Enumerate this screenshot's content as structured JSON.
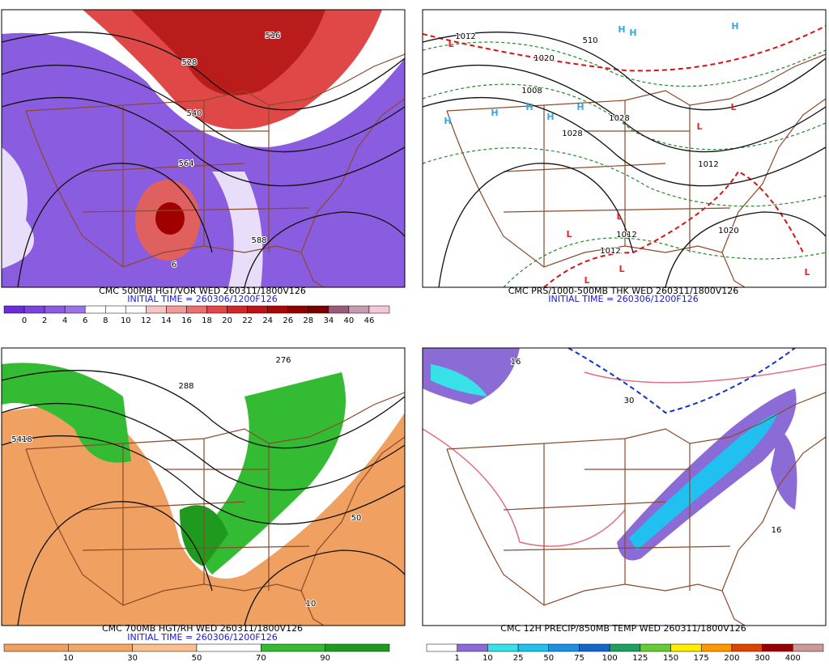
{
  "panels": [
    {
      "caption": "CMC 500MB HGT/VOR WED 260311/1800V126",
      "initial_time": "INITIAL TIME = 260306/1200F126",
      "colorbar": {
        "labels": [
          0,
          2,
          4,
          6,
          8,
          10,
          12,
          14,
          16,
          18,
          20,
          22,
          24,
          26,
          28,
          34,
          40,
          46
        ],
        "colors": [
          "#6a2bd8",
          "#7a44dc",
          "#8a5ce0",
          "#9a74e4",
          "#ffffff",
          "#ffffff",
          "#ffffff",
          "#f6c4c4",
          "#f09a9a",
          "#e87070",
          "#e04848",
          "#d02828",
          "#bc1414",
          "#a80808",
          "#900000",
          "#780000",
          "#9a5a78",
          "#c89ab0",
          "#f2c8d8"
        ]
      },
      "labels": [
        "516",
        "528",
        "540",
        "564",
        "588",
        "6"
      ]
    },
    {
      "caption": "CMC PRS/1000-500MB THK WED 260311/1800V126",
      "initial_time": "INITIAL TIME = 260306/1200F126",
      "labels": [
        "1012",
        "1020",
        "1008",
        "510",
        "1028",
        "1028",
        "1012",
        "1020",
        "1012",
        "1012"
      ],
      "highs": [
        "H",
        "H",
        "H",
        "H",
        "H",
        "H",
        "H",
        "H"
      ],
      "lows": [
        "L",
        "L",
        "L",
        "L",
        "L",
        "L",
        "L",
        "L"
      ]
    },
    {
      "caption": "CMC 700MB HGT/RH WED 260311/1800V126",
      "initial_time": "INITIAL TIME = 260306/1200F126",
      "colorbar": {
        "labels": [
          10,
          30,
          50,
          70,
          90
        ],
        "colors": [
          "#f0a060",
          "#f4a868",
          "#f8c090",
          "#ffffff",
          "#33bb33",
          "#1f9a1f"
        ]
      },
      "labels": [
        "276",
        "288",
        "5418",
        "50",
        "10"
      ]
    },
    {
      "caption": "CMC 12H PRECIP/850MB TEMP WED 260311/1800V126",
      "colorbar": {
        "labels": [
          1,
          10,
          25,
          50,
          75,
          100,
          125,
          150,
          175,
          200,
          300,
          400
        ],
        "colors": [
          "#ffffff",
          "#8b6bd6",
          "#38e0e8",
          "#20c0f0",
          "#1e90e0",
          "#1566c8",
          "#20a060",
          "#66cc33",
          "#ffee00",
          "#ff9900",
          "#dd4400",
          "#990000",
          "#cc9999"
        ]
      },
      "labels": [
        "16",
        "30",
        "16"
      ]
    }
  ]
}
